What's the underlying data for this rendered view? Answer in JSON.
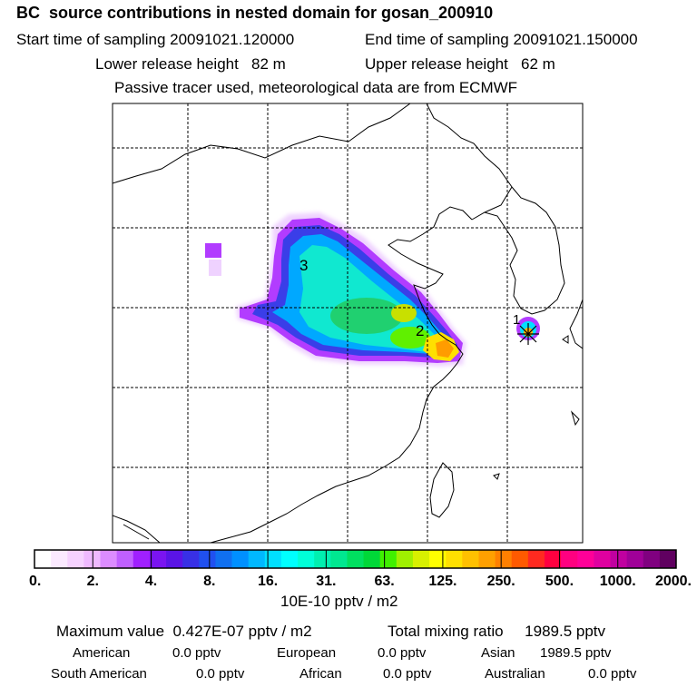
{
  "header": {
    "title": "BC  source contributions in nested domain for gosan_200910",
    "start_label": "Start time of sampling 20091021.120000",
    "end_label": "End time of sampling 20091021.150000",
    "lower_label": "Lower release height   82 m",
    "upper_label": "Upper release height   62 m",
    "tracer_note": "Passive tracer used, meteorological data are from ECMWF"
  },
  "map": {
    "source_labels": [
      "1",
      "2",
      "3"
    ]
  },
  "colorbar": {
    "tick_labels": [
      "0.",
      "2.",
      "4.",
      "8.",
      "16.",
      "31.",
      "63.",
      "125.",
      "250.",
      "500.",
      "1000.",
      "2000."
    ],
    "unit": "10E-10 pptv / m2",
    "colors": [
      "#ffffff",
      "#fbe9ff",
      "#f6d2ff",
      "#efb9ff",
      "#dc8cff",
      "#c060ff",
      "#a020ff",
      "#7a14f0",
      "#5a14e6",
      "#3830e6",
      "#2050f0",
      "#1070f0",
      "#0090ff",
      "#00b8ff",
      "#00e0ff",
      "#00ffff",
      "#00ffd8",
      "#00f0b0",
      "#00e890",
      "#00e060",
      "#00d838",
      "#40f000",
      "#a0f000",
      "#d8f000",
      "#ffff00",
      "#ffe000",
      "#ffc000",
      "#ffa000",
      "#ff8000",
      "#ff5a00",
      "#ff2a20",
      "#ff0040",
      "#ff0080",
      "#ff0098",
      "#e000a0",
      "#c000a0",
      "#a00098",
      "#800080",
      "#600060"
    ]
  },
  "footer": {
    "max_value": "Maximum value  0.427E-07 pptv / m2",
    "total_mixing": "Total mixing ratio     1989.5 pptv",
    "american": "American",
    "american_val": "0.0 pptv",
    "european": "European",
    "european_val": "0.0 pptv",
    "asian": "Asian",
    "asian_val": "1989.5 pptv",
    "south_american": "South American",
    "south_american_val": "0.0 pptv",
    "african": "African",
    "african_val": "0.0 pptv",
    "australian": "Australian",
    "australian_val": "0.0 pptv"
  }
}
